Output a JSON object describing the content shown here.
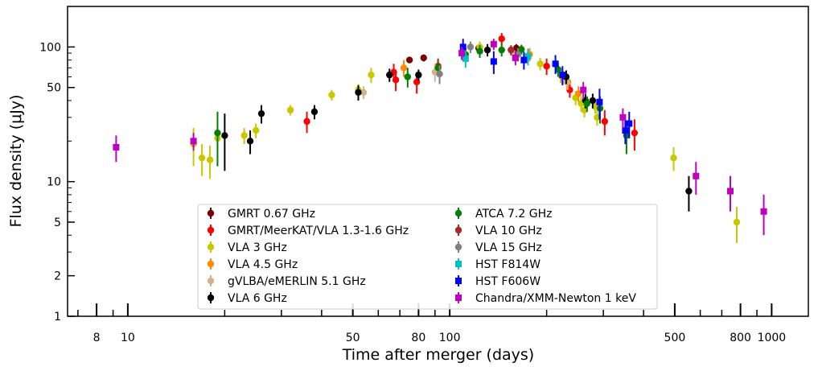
{
  "chart_data": {
    "type": "scatter",
    "xlabel": "Time after merger (days)",
    "ylabel": "Flux density (μJy)",
    "xscale": "log",
    "yscale": "log",
    "xlim": [
      6.5,
      1300
    ],
    "ylim": [
      1,
      200
    ],
    "x_ticks": [
      8,
      10,
      50,
      80,
      100,
      500,
      800,
      1000
    ],
    "y_ticks": [
      1,
      2,
      5,
      10,
      50,
      100
    ],
    "grid": false,
    "legend_position": "bottom-center",
    "series": [
      {
        "name": "GMRT 0.67 GHz",
        "color": "#7a0000",
        "marker": "circle",
        "points": [
          [
            75,
            80,
            4
          ],
          [
            83,
            83,
            5
          ],
          [
            123,
            98,
            6
          ],
          [
            161,
            98,
            7
          ]
        ]
      },
      {
        "name": "GMRT/MeerKAT/VLA 1.3-1.6 GHz",
        "color": "#ff0000",
        "marker": "circle",
        "points": [
          [
            36,
            28,
            5
          ],
          [
            67,
            65,
            10
          ],
          [
            68,
            57,
            10
          ],
          [
            79,
            55,
            10
          ],
          [
            92,
            72,
            10
          ],
          [
            145,
            115,
            12
          ],
          [
            200,
            72,
            10
          ],
          [
            236,
            48,
            6
          ],
          [
            303,
            28,
            6
          ],
          [
            375,
            23,
            6
          ]
        ]
      },
      {
        "name": "VLA 3 GHz",
        "color": "#c8c800",
        "marker": "circle",
        "points": [
          [
            16,
            19,
            6
          ],
          [
            17,
            15,
            4
          ],
          [
            18,
            14.5,
            4
          ],
          [
            19,
            21,
            3
          ],
          [
            23,
            22,
            3
          ],
          [
            25,
            24,
            3
          ],
          [
            32,
            34,
            3
          ],
          [
            43,
            44,
            4
          ],
          [
            52,
            48,
            5
          ],
          [
            57,
            62,
            8
          ],
          [
            124,
            100,
            10
          ],
          [
            191,
            75,
            8
          ],
          [
            221,
            62,
            8
          ],
          [
            246,
            42,
            5
          ],
          [
            256,
            38,
            5
          ],
          [
            262,
            34,
            4
          ],
          [
            283,
            36,
            4
          ],
          [
            287,
            30,
            4
          ],
          [
            496,
            15,
            3
          ],
          [
            779,
            5,
            1.5
          ]
        ]
      },
      {
        "name": "VLA 4.5 GHz",
        "color": "#ff8c00",
        "marker": "circle",
        "points": [
          [
            72,
            70,
            10
          ],
          [
            177,
            88,
            10
          ],
          [
            224,
            60,
            8
          ],
          [
            233,
            55,
            7
          ],
          [
            251,
            45,
            6
          ]
        ]
      },
      {
        "name": "gVLBA/eMERLIN 5.1 GHz",
        "color": "#d2b48c",
        "marker": "circle",
        "points": [
          [
            54,
            46,
            5
          ],
          [
            90,
            65,
            10
          ],
          [
            157,
            90,
            10
          ],
          [
            231,
            55,
            7
          ]
        ]
      },
      {
        "name": "VLA 6 GHz",
        "color": "#000000",
        "marker": "circle",
        "points": [
          [
            20,
            22,
            10
          ],
          [
            24,
            20,
            4
          ],
          [
            26,
            32,
            5
          ],
          [
            38,
            33,
            4
          ],
          [
            52,
            46,
            6
          ],
          [
            65,
            62,
            7
          ],
          [
            80,
            62,
            6
          ],
          [
            131,
            95,
            10
          ],
          [
            230,
            60,
            7
          ],
          [
            264,
            40,
            5
          ],
          [
            278,
            40,
            5
          ],
          [
            553,
            8.5,
            2.5
          ]
        ]
      },
      {
        "name": "ATCA 7.2 GHz",
        "color": "#008000",
        "marker": "circle",
        "points": [
          [
            19,
            23,
            10
          ],
          [
            74,
            60,
            10
          ],
          [
            92,
            70,
            10
          ],
          [
            112,
            88,
            10
          ],
          [
            124,
            93,
            10
          ],
          [
            145,
            95,
            10
          ],
          [
            167,
            96,
            8
          ],
          [
            217,
            68,
            8
          ],
          [
            267,
            38,
            5
          ],
          [
            293,
            35,
            8
          ],
          [
            354,
            22,
            6
          ]
        ]
      },
      {
        "name": "VLA 10 GHz",
        "color": "#a52a2a",
        "marker": "circle",
        "points": [
          [
            155,
            95,
            8
          ]
        ]
      },
      {
        "name": "VLA 15 GHz",
        "color": "#808080",
        "marker": "circle",
        "points": [
          [
            93,
            63,
            10
          ],
          [
            116,
            100,
            10
          ],
          [
            163,
            88,
            10
          ]
        ]
      },
      {
        "name": "HST F814W",
        "color": "#00bfbf",
        "marker": "square",
        "points": [
          [
            112,
            82,
            12
          ],
          [
            175,
            85,
            12
          ]
        ]
      },
      {
        "name": "HST F606W",
        "color": "#0000ff",
        "marker": "square",
        "points": [
          [
            110,
            100,
            15
          ],
          [
            137,
            78,
            15
          ],
          [
            170,
            80,
            12
          ],
          [
            213,
            75,
            12
          ],
          [
            224,
            62,
            10
          ],
          [
            292,
            39,
            10
          ],
          [
            351,
            24,
            5
          ],
          [
            361,
            27,
            6
          ]
        ]
      },
      {
        "name": "Chandra/XMM-Newton 1 keV",
        "color": "#c000c0",
        "marker": "square",
        "points": [
          [
            9.2,
            18,
            4
          ],
          [
            16,
            20,
            3
          ],
          [
            109,
            90,
            10
          ],
          [
            137,
            105,
            10
          ],
          [
            160,
            83,
            10
          ],
          [
            260,
            48,
            7
          ],
          [
            345,
            30,
            5
          ],
          [
            582,
            11,
            3
          ],
          [
            744,
            8.5,
            2.5
          ],
          [
            945,
            6,
            2
          ]
        ]
      }
    ]
  }
}
